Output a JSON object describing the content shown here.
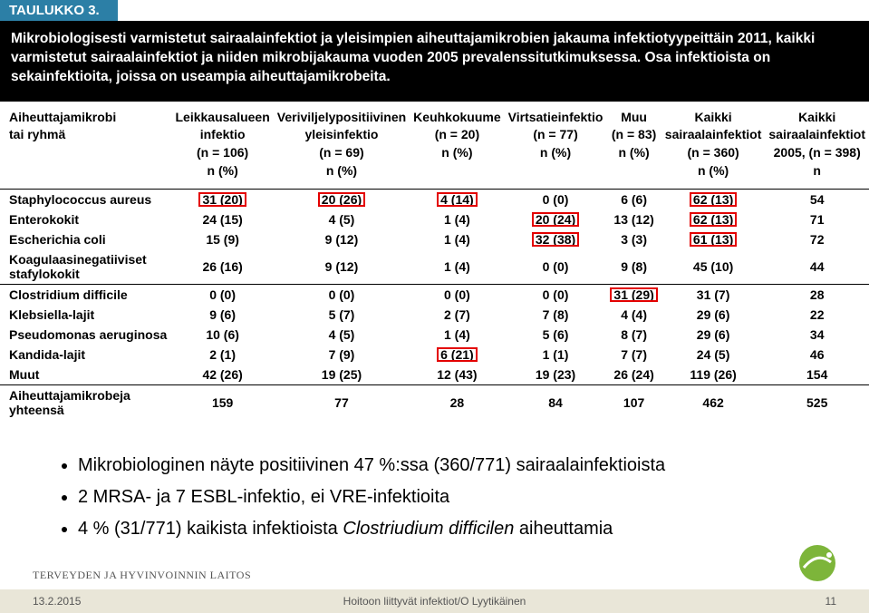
{
  "table_label": "TAULUKKO 3.",
  "caption": "Mikrobiologisesti varmistetut sairaalainfektiot ja yleisimpien aiheuttajamikrobien jakauma infektiotyypeittäin 2011, kaikki varmistetut sairaalainfektiot ja niiden mikrobijakauma vuoden 2005 prevalenssitutkimuksessa. Osa infektioista on sekainfektioita, joissa on useampia aiheuttajamikrobeita.",
  "columns": [
    [
      "Aiheuttajamikrobi",
      "tai ryhmä"
    ],
    [
      "Leikkausalueen",
      "infektio",
      "(n = 106)",
      "n (%)"
    ],
    [
      "Veriviljelypositiivinen",
      "yleisinfektio",
      "(n = 69)",
      "n (%)"
    ],
    [
      "Keuhkokuume",
      "(n = 20)",
      "n (%)"
    ],
    [
      "Virtsatieinfektio",
      "(n = 77)",
      "n (%)"
    ],
    [
      "Muu",
      "(n = 83)",
      "n (%)"
    ],
    [
      "Kaikki",
      "sairaalainfektiot",
      "(n = 360)",
      "n (%)"
    ],
    [
      "Kaikki",
      "sairaalainfektiot",
      "2005, (n = 398)",
      "n"
    ]
  ],
  "rows": [
    {
      "label": "Staphylococcus aureus",
      "cells": [
        {
          "t": "31 (20)",
          "hl": true
        },
        {
          "t": "20 (26)",
          "hl": true
        },
        {
          "t": "4 (14)",
          "hl": true
        },
        {
          "t": "0 (0)"
        },
        {
          "t": "6 (6)"
        },
        {
          "t": "62 (13)",
          "hl": true
        },
        {
          "t": "54"
        }
      ]
    },
    {
      "label": "Enterokokit",
      "cells": [
        {
          "t": "24 (15)"
        },
        {
          "t": "4 (5)"
        },
        {
          "t": "1 (4)"
        },
        {
          "t": "20 (24)",
          "hl": true
        },
        {
          "t": "13 (12)"
        },
        {
          "t": "62 (13)",
          "hl": true
        },
        {
          "t": "71"
        }
      ]
    },
    {
      "label": "Escherichia coli",
      "cells": [
        {
          "t": "15 (9)"
        },
        {
          "t": "9 (12)"
        },
        {
          "t": "1 (4)"
        },
        {
          "t": "32 (38)",
          "hl": true
        },
        {
          "t": "3 (3)"
        },
        {
          "t": "61 (13)",
          "hl": true
        },
        {
          "t": "72"
        }
      ]
    },
    {
      "label": "Koagulaasinegatiiviset stafylokokit",
      "cells": [
        {
          "t": "26 (16)"
        },
        {
          "t": "9 (12)"
        },
        {
          "t": "1 (4)"
        },
        {
          "t": "0 (0)"
        },
        {
          "t": "9 (8)"
        },
        {
          "t": "45 (10)"
        },
        {
          "t": "44"
        }
      ]
    },
    {
      "label": "Clostridium difficile",
      "sep": true,
      "cells": [
        {
          "t": "0 (0)"
        },
        {
          "t": "0 (0)"
        },
        {
          "t": "0 (0)"
        },
        {
          "t": "0 (0)"
        },
        {
          "t": "31 (29)",
          "hl": true
        },
        {
          "t": "31 (7)"
        },
        {
          "t": "28"
        }
      ]
    },
    {
      "label": "Klebsiella-lajit",
      "cells": [
        {
          "t": "9 (6)"
        },
        {
          "t": "5 (7)"
        },
        {
          "t": "2 (7)"
        },
        {
          "t": "7 (8)"
        },
        {
          "t": "4 (4)"
        },
        {
          "t": "29 (6)"
        },
        {
          "t": "22"
        }
      ]
    },
    {
      "label": "Pseudomonas aeruginosa",
      "cells": [
        {
          "t": "10 (6)"
        },
        {
          "t": "4 (5)"
        },
        {
          "t": "1 (4)"
        },
        {
          "t": "5 (6)"
        },
        {
          "t": "8 (7)"
        },
        {
          "t": "29 (6)"
        },
        {
          "t": "34"
        }
      ]
    },
    {
      "label": "Kandida-lajit",
      "cells": [
        {
          "t": "2 (1)"
        },
        {
          "t": "7 (9)"
        },
        {
          "t": "6 (21)",
          "hl": true
        },
        {
          "t": "1 (1)"
        },
        {
          "t": "7 (7)"
        },
        {
          "t": "24 (5)"
        },
        {
          "t": "46"
        }
      ]
    },
    {
      "label": "Muut",
      "cells": [
        {
          "t": "42 (26)"
        },
        {
          "t": "19 (25)"
        },
        {
          "t": "12 (43)"
        },
        {
          "t": "19 (23)"
        },
        {
          "t": "26 (24)"
        },
        {
          "t": "119 (26)"
        },
        {
          "t": "154"
        }
      ]
    },
    {
      "label": "Aiheuttajamikrobeja yhteensä",
      "sep": true,
      "cells": [
        {
          "t": "159"
        },
        {
          "t": "77"
        },
        {
          "t": "28"
        },
        {
          "t": "84"
        },
        {
          "t": "107"
        },
        {
          "t": "462"
        },
        {
          "t": "525"
        }
      ]
    }
  ],
  "bullets": [
    "Mikrobiologinen näyte positiivinen 47 %:ssa (360/771) sairaalainfektioista",
    "2 MRSA- ja 7 ESBL-infektio, ei VRE-infektioita",
    "4 % (31/771) kaikista infektioista <em>Clostriudium difficilen</em> aiheuttamia"
  ],
  "thl_text": "TERVEYDEN JA HYVINVOINNIN LAITOS",
  "footer": {
    "date": "13.2.2015",
    "mid": "Hoitoon liittyvät infektiot/O Lyytikäinen",
    "page": "11"
  },
  "style": {
    "header_bg": "#2c7fa6",
    "caption_bg": "#000000",
    "highlight_border": "#e30000",
    "footer_bg": "#e9e6d8"
  }
}
